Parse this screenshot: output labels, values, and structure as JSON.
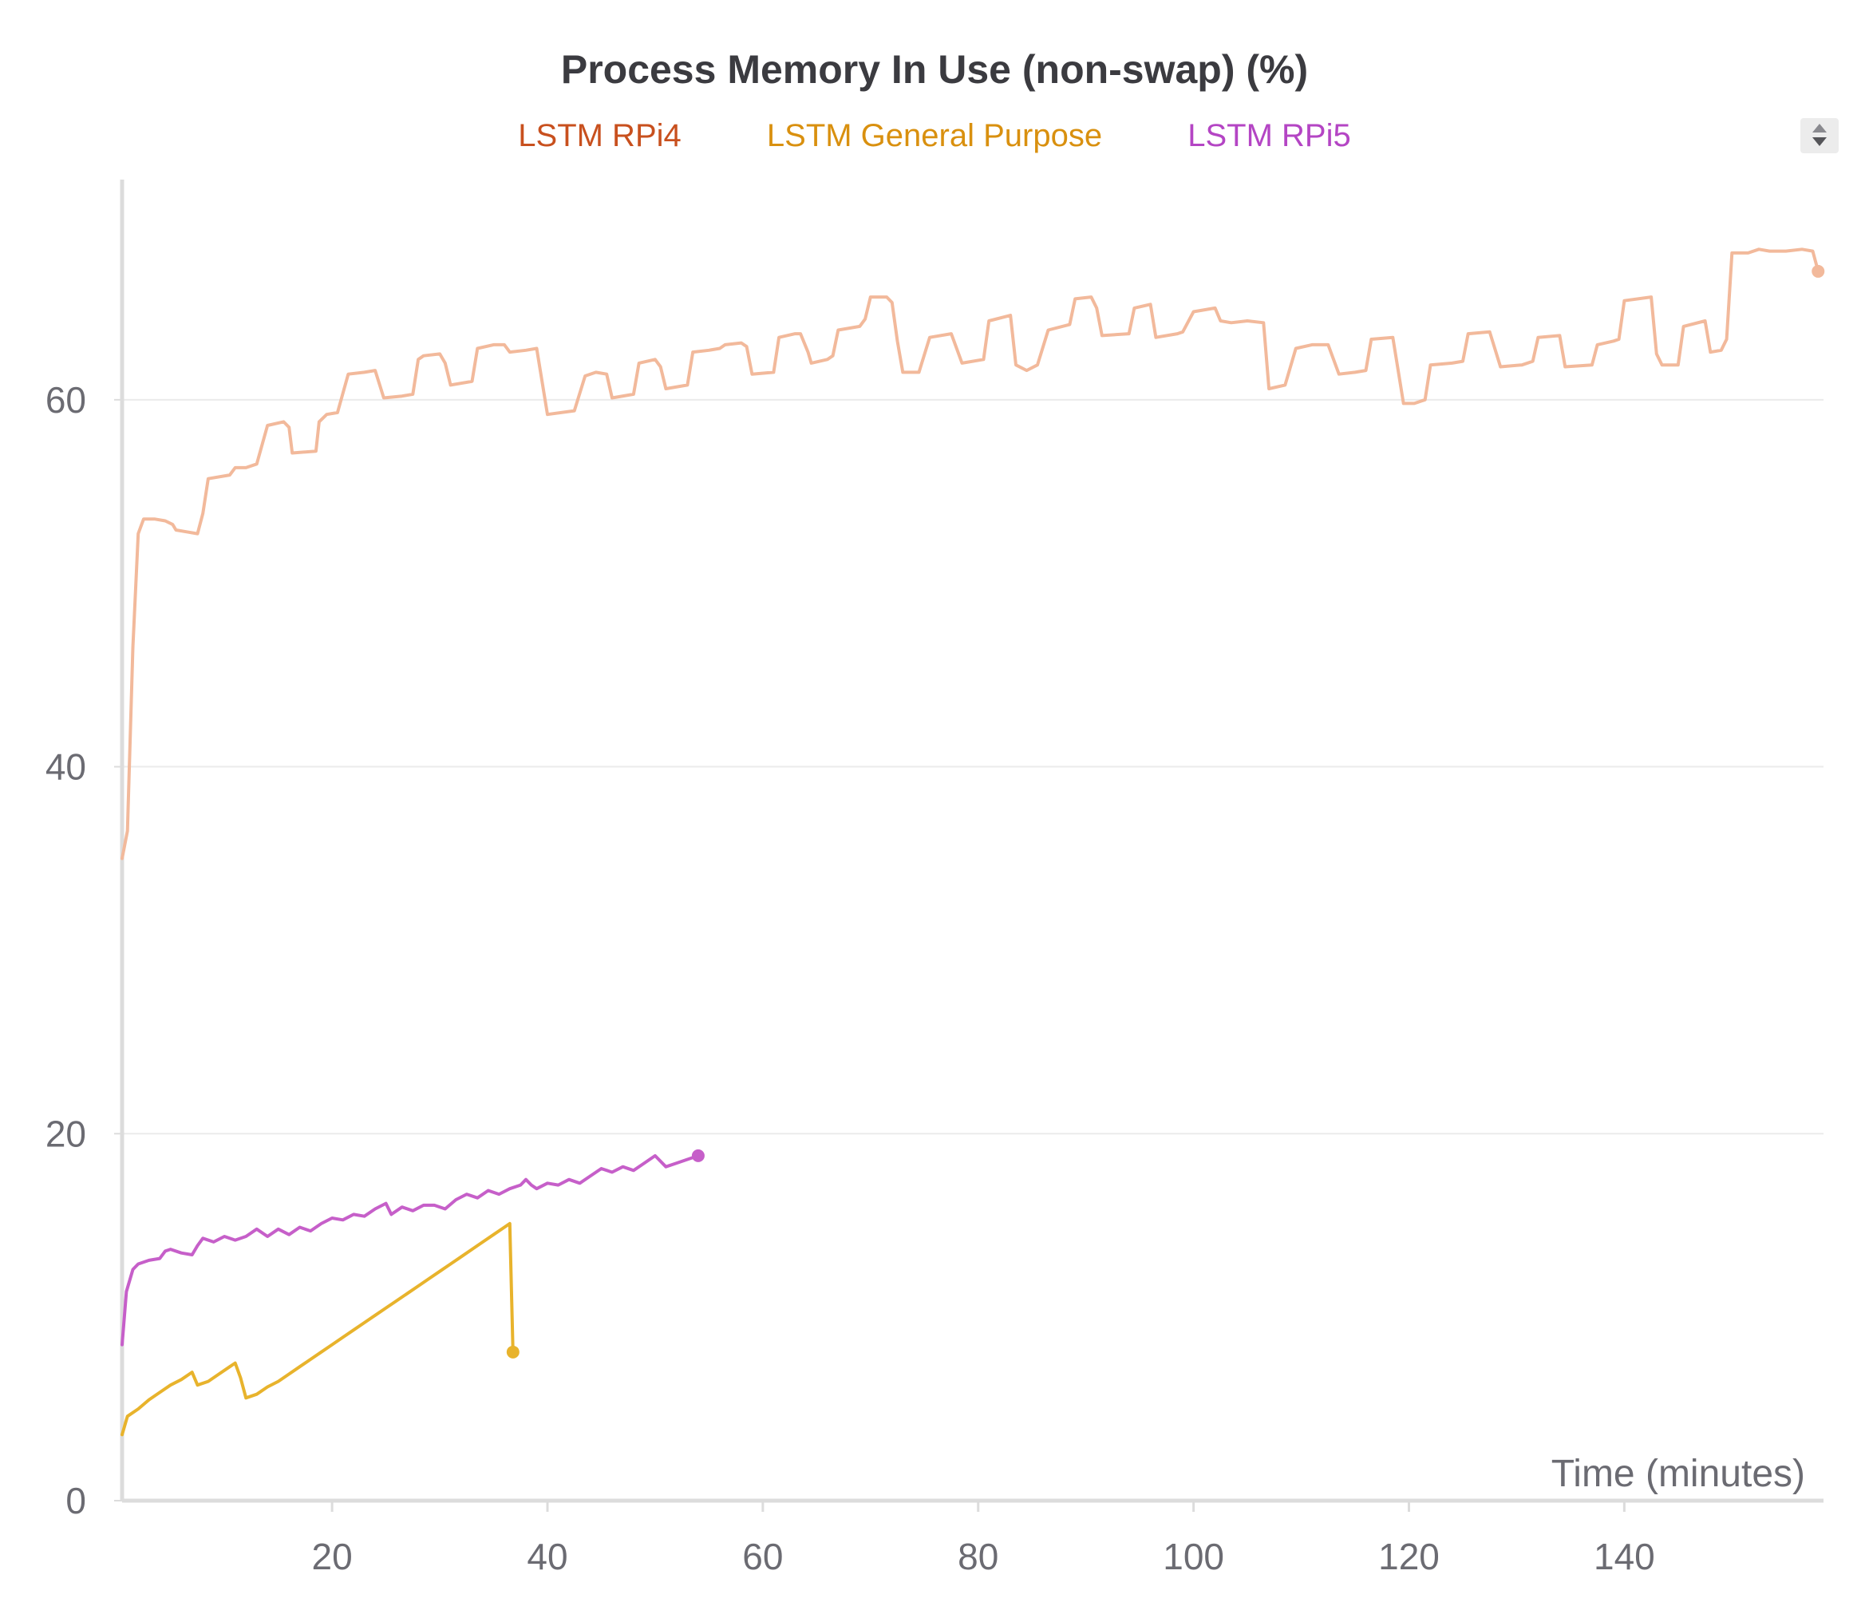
{
  "chart_data": {
    "type": "line",
    "title": "Process Memory In Use (non-swap) (%)",
    "xlabel": "Time (minutes)",
    "ylabel": "",
    "xlim": [
      0.5,
      158.5
    ],
    "ylim": [
      0,
      72
    ],
    "x_ticks": [
      20,
      40,
      60,
      80,
      100,
      120,
      140
    ],
    "y_ticks": [
      0,
      20,
      40,
      60
    ],
    "grid": true,
    "legend_position": "top-center",
    "series": [
      {
        "name": "LSTM RPi4",
        "color": "#f2b99b",
        "legend_color": "#c8501e",
        "points": [
          [
            0.5,
            35.0
          ],
          [
            1.0,
            36.5
          ],
          [
            1.5,
            46.5
          ],
          [
            2.0,
            52.7
          ],
          [
            2.5,
            53.5
          ],
          [
            3.5,
            53.5
          ],
          [
            4.5,
            53.4
          ],
          [
            5.2,
            53.2
          ],
          [
            5.5,
            52.9
          ],
          [
            6.5,
            52.8
          ],
          [
            7.5,
            52.7
          ],
          [
            8.0,
            53.8
          ],
          [
            8.5,
            55.7
          ],
          [
            10.5,
            55.9
          ],
          [
            11.0,
            56.3
          ],
          [
            12.0,
            56.3
          ],
          [
            13.0,
            56.5
          ],
          [
            14.0,
            58.6
          ],
          [
            15.5,
            58.8
          ],
          [
            16.0,
            58.5
          ],
          [
            16.3,
            57.1
          ],
          [
            18.5,
            57.2
          ],
          [
            18.8,
            58.8
          ],
          [
            19.5,
            59.2
          ],
          [
            20.5,
            59.3
          ],
          [
            21.5,
            61.4
          ],
          [
            23.0,
            61.5
          ],
          [
            24.0,
            61.6
          ],
          [
            24.8,
            60.1
          ],
          [
            26.5,
            60.2
          ],
          [
            27.5,
            60.3
          ],
          [
            28.0,
            62.2
          ],
          [
            28.5,
            62.4
          ],
          [
            30.0,
            62.5
          ],
          [
            30.5,
            62.0
          ],
          [
            31.0,
            60.8
          ],
          [
            33.0,
            61.0
          ],
          [
            33.5,
            62.8
          ],
          [
            35.0,
            63.0
          ],
          [
            36.0,
            63.0
          ],
          [
            36.5,
            62.6
          ],
          [
            38.0,
            62.7
          ],
          [
            39.0,
            62.8
          ],
          [
            40.0,
            59.2
          ],
          [
            42.5,
            59.4
          ],
          [
            43.5,
            61.3
          ],
          [
            44.5,
            61.5
          ],
          [
            45.5,
            61.4
          ],
          [
            46.0,
            60.1
          ],
          [
            48.0,
            60.3
          ],
          [
            48.5,
            62.0
          ],
          [
            50.0,
            62.2
          ],
          [
            50.5,
            61.8
          ],
          [
            51.0,
            60.6
          ],
          [
            53.0,
            60.8
          ],
          [
            53.5,
            62.6
          ],
          [
            55.0,
            62.7
          ],
          [
            56.0,
            62.8
          ],
          [
            56.5,
            63.0
          ],
          [
            58.0,
            63.1
          ],
          [
            58.5,
            62.9
          ],
          [
            59.0,
            61.4
          ],
          [
            61.0,
            61.5
          ],
          [
            61.5,
            63.4
          ],
          [
            63.0,
            63.6
          ],
          [
            63.5,
            63.6
          ],
          [
            64.2,
            62.6
          ],
          [
            64.5,
            62.0
          ],
          [
            66.0,
            62.2
          ],
          [
            66.5,
            62.4
          ],
          [
            67.0,
            63.8
          ],
          [
            69.0,
            64.0
          ],
          [
            69.5,
            64.4
          ],
          [
            70.0,
            65.6
          ],
          [
            71.5,
            65.6
          ],
          [
            72.0,
            65.3
          ],
          [
            72.5,
            63.2
          ],
          [
            73.0,
            61.5
          ],
          [
            74.5,
            61.5
          ],
          [
            75.5,
            63.4
          ],
          [
            77.5,
            63.6
          ],
          [
            78.5,
            62.0
          ],
          [
            80.5,
            62.2
          ],
          [
            81.0,
            64.3
          ],
          [
            83.0,
            64.6
          ],
          [
            83.5,
            61.9
          ],
          [
            84.5,
            61.6
          ],
          [
            85.5,
            61.9
          ],
          [
            86.5,
            63.8
          ],
          [
            88.5,
            64.1
          ],
          [
            89.0,
            65.5
          ],
          [
            90.5,
            65.6
          ],
          [
            91.0,
            65.0
          ],
          [
            91.5,
            63.5
          ],
          [
            94.0,
            63.6
          ],
          [
            94.5,
            65.0
          ],
          [
            96.0,
            65.2
          ],
          [
            96.5,
            63.4
          ],
          [
            98.5,
            63.6
          ],
          [
            99.0,
            63.7
          ],
          [
            100.0,
            64.8
          ],
          [
            102.0,
            65.0
          ],
          [
            102.5,
            64.3
          ],
          [
            103.5,
            64.2
          ],
          [
            105.0,
            64.3
          ],
          [
            106.5,
            64.2
          ],
          [
            107.0,
            60.6
          ],
          [
            108.5,
            60.8
          ],
          [
            109.5,
            62.8
          ],
          [
            111.0,
            63.0
          ],
          [
            112.5,
            63.0
          ],
          [
            113.5,
            61.4
          ],
          [
            115.0,
            61.5
          ],
          [
            116.0,
            61.6
          ],
          [
            116.5,
            63.3
          ],
          [
            118.5,
            63.4
          ],
          [
            119.5,
            59.8
          ],
          [
            120.5,
            59.8
          ],
          [
            121.5,
            60.0
          ],
          [
            122.0,
            61.9
          ],
          [
            124.0,
            62.0
          ],
          [
            125.0,
            62.1
          ],
          [
            125.5,
            63.6
          ],
          [
            127.5,
            63.7
          ],
          [
            128.5,
            61.8
          ],
          [
            130.5,
            61.9
          ],
          [
            131.5,
            62.1
          ],
          [
            132.0,
            63.4
          ],
          [
            134.0,
            63.5
          ],
          [
            134.5,
            61.8
          ],
          [
            137.0,
            61.9
          ],
          [
            137.5,
            63.0
          ],
          [
            139.0,
            63.2
          ],
          [
            139.5,
            63.3
          ],
          [
            140.0,
            65.4
          ],
          [
            142.5,
            65.6
          ],
          [
            143.0,
            62.5
          ],
          [
            143.5,
            61.9
          ],
          [
            145.0,
            61.9
          ],
          [
            145.5,
            64.0
          ],
          [
            147.5,
            64.3
          ],
          [
            148.0,
            62.6
          ],
          [
            149.0,
            62.7
          ],
          [
            149.5,
            63.3
          ],
          [
            150.0,
            68.0
          ],
          [
            151.5,
            68.0
          ],
          [
            152.5,
            68.2
          ],
          [
            153.5,
            68.1
          ],
          [
            155.0,
            68.1
          ],
          [
            156.5,
            68.2
          ],
          [
            157.5,
            68.1
          ],
          [
            158.0,
            67.0
          ]
        ]
      },
      {
        "name": "LSTM General Purpose",
        "color": "#e8b32c",
        "legend_color": "#d9900f",
        "points": [
          [
            0.5,
            3.6
          ],
          [
            1.0,
            4.6
          ],
          [
            2.0,
            5.0
          ],
          [
            3.0,
            5.5
          ],
          [
            4.0,
            5.9
          ],
          [
            5.0,
            6.3
          ],
          [
            6.0,
            6.6
          ],
          [
            7.0,
            7.0
          ],
          [
            7.5,
            6.3
          ],
          [
            8.5,
            6.5
          ],
          [
            9.5,
            6.9
          ],
          [
            10.5,
            7.3
          ],
          [
            11.0,
            7.5
          ],
          [
            11.5,
            6.7
          ],
          [
            12.0,
            5.6
          ],
          [
            13.0,
            5.8
          ],
          [
            14.0,
            6.2
          ],
          [
            15.0,
            6.5
          ],
          [
            16.0,
            6.9
          ],
          [
            17.0,
            7.3
          ],
          [
            18.0,
            7.7
          ],
          [
            19.0,
            8.1
          ],
          [
            20.0,
            8.5
          ],
          [
            21.0,
            8.9
          ],
          [
            22.0,
            9.3
          ],
          [
            23.0,
            9.7
          ],
          [
            24.0,
            10.1
          ],
          [
            25.0,
            10.5
          ],
          [
            26.0,
            10.9
          ],
          [
            27.0,
            11.3
          ],
          [
            28.0,
            11.7
          ],
          [
            29.0,
            12.1
          ],
          [
            30.0,
            12.5
          ],
          [
            31.0,
            12.9
          ],
          [
            32.0,
            13.3
          ],
          [
            33.0,
            13.7
          ],
          [
            34.0,
            14.1
          ],
          [
            35.0,
            14.5
          ],
          [
            36.0,
            14.9
          ],
          [
            36.5,
            15.1
          ],
          [
            36.8,
            8.1
          ]
        ]
      },
      {
        "name": "LSTM RPi5",
        "color": "#c65fc9",
        "legend_color": "#b445c4",
        "points": [
          [
            0.5,
            8.5
          ],
          [
            0.9,
            11.4
          ],
          [
            1.5,
            12.6
          ],
          [
            2.0,
            12.9
          ],
          [
            3.0,
            13.1
          ],
          [
            4.0,
            13.2
          ],
          [
            4.5,
            13.6
          ],
          [
            5.0,
            13.7
          ],
          [
            6.0,
            13.5
          ],
          [
            7.0,
            13.4
          ],
          [
            7.5,
            13.9
          ],
          [
            8.0,
            14.3
          ],
          [
            9.0,
            14.1
          ],
          [
            10.0,
            14.4
          ],
          [
            11.0,
            14.2
          ],
          [
            12.0,
            14.4
          ],
          [
            13.0,
            14.8
          ],
          [
            14.0,
            14.4
          ],
          [
            15.0,
            14.8
          ],
          [
            16.0,
            14.5
          ],
          [
            17.0,
            14.9
          ],
          [
            18.0,
            14.7
          ],
          [
            19.0,
            15.1
          ],
          [
            20.0,
            15.4
          ],
          [
            21.0,
            15.3
          ],
          [
            22.0,
            15.6
          ],
          [
            23.0,
            15.5
          ],
          [
            24.0,
            15.9
          ],
          [
            25.0,
            16.2
          ],
          [
            25.5,
            15.6
          ],
          [
            26.5,
            16.0
          ],
          [
            27.5,
            15.8
          ],
          [
            28.5,
            16.1
          ],
          [
            29.5,
            16.1
          ],
          [
            30.5,
            15.9
          ],
          [
            31.5,
            16.4
          ],
          [
            32.5,
            16.7
          ],
          [
            33.5,
            16.5
          ],
          [
            34.5,
            16.9
          ],
          [
            35.5,
            16.7
          ],
          [
            36.5,
            17.0
          ],
          [
            37.5,
            17.2
          ],
          [
            38.0,
            17.5
          ],
          [
            38.5,
            17.2
          ],
          [
            39.0,
            17.0
          ],
          [
            40.0,
            17.3
          ],
          [
            41.0,
            17.2
          ],
          [
            42.0,
            17.5
          ],
          [
            43.0,
            17.3
          ],
          [
            44.0,
            17.7
          ],
          [
            45.0,
            18.1
          ],
          [
            46.0,
            17.9
          ],
          [
            47.0,
            18.2
          ],
          [
            48.0,
            18.0
          ],
          [
            49.0,
            18.4
          ],
          [
            50.0,
            18.8
          ],
          [
            51.0,
            18.2
          ],
          [
            52.0,
            18.4
          ],
          [
            53.0,
            18.6
          ],
          [
            54.0,
            18.8
          ]
        ]
      }
    ]
  }
}
